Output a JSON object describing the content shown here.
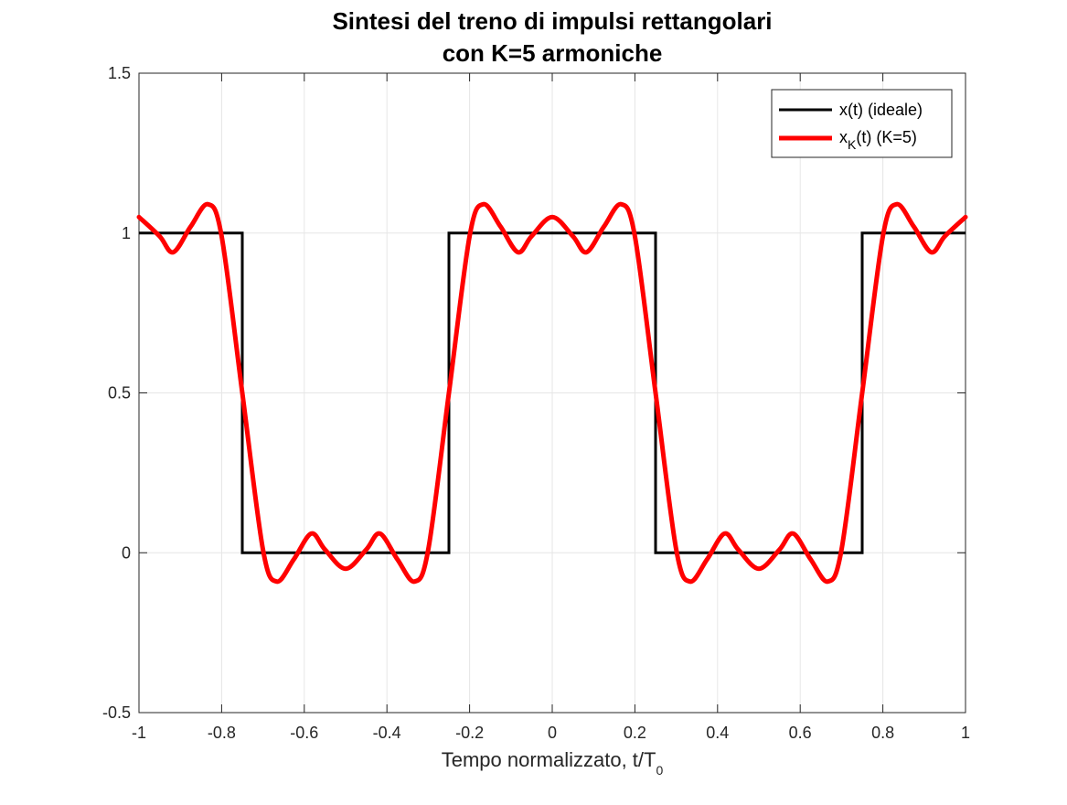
{
  "chart_data": {
    "type": "line",
    "title": [
      "Sintesi del treno di impulsi rettangolari",
      "con K=5 armoniche"
    ],
    "xlabel": {
      "main": "Tempo normalizzato, t/T",
      "subscript": "0"
    },
    "ylabel": "",
    "xlim": [
      -1,
      1
    ],
    "ylim": [
      -0.5,
      1.5
    ],
    "xticks": [
      -1,
      -0.8,
      -0.6,
      -0.4,
      -0.2,
      0,
      0.2,
      0.4,
      0.6,
      0.8,
      1
    ],
    "xtick_labels": [
      "-1",
      "-0.8",
      "-0.6",
      "-0.4",
      "-0.2",
      "0",
      "0.2",
      "0.4",
      "0.6",
      "0.8",
      "1"
    ],
    "yticks": [
      -0.5,
      0,
      0.5,
      1,
      1.5
    ],
    "ytick_labels": [
      "-0.5",
      "0",
      "0.5",
      "1",
      "1.5"
    ],
    "grid": true,
    "legend_position": "top-right",
    "series": [
      {
        "name": "x(t) (ideale)",
        "color": "#000000",
        "x": [
          -1,
          -0.75,
          -0.75,
          -0.25,
          -0.25,
          0.25,
          0.25,
          0.75,
          0.75,
          1
        ],
        "y": [
          1,
          1,
          0,
          0,
          1,
          1,
          0,
          0,
          1,
          1
        ]
      },
      {
        "name": "x_K(t) (K=5)",
        "color": "#ff0000",
        "x": [
          -1,
          -0.95,
          -0.917,
          -0.875,
          -0.833,
          -0.8,
          -0.75,
          -0.7,
          -0.667,
          -0.625,
          -0.583,
          -0.55,
          -0.5,
          -0.45,
          -0.417,
          -0.375,
          -0.333,
          -0.3,
          -0.25,
          -0.2,
          -0.167,
          -0.125,
          -0.083,
          -0.05,
          0,
          0.05,
          0.083,
          0.125,
          0.167,
          0.2,
          0.25,
          0.3,
          0.333,
          0.375,
          0.417,
          0.45,
          0.5,
          0.55,
          0.583,
          0.625,
          0.667,
          0.7,
          0.75,
          0.8,
          0.833,
          0.875,
          0.917,
          0.95,
          1
        ],
        "y": [
          1.05,
          0.99,
          0.94,
          1.02,
          1.09,
          0.99,
          0.5,
          0.01,
          -0.09,
          -0.02,
          0.06,
          0.01,
          -0.05,
          0.01,
          0.06,
          -0.02,
          -0.09,
          0.01,
          0.5,
          0.99,
          1.09,
          1.02,
          0.94,
          0.99,
          1.05,
          0.99,
          0.94,
          1.02,
          1.09,
          0.99,
          0.5,
          0.01,
          -0.09,
          -0.02,
          0.06,
          0.01,
          -0.05,
          0.01,
          0.06,
          -0.02,
          -0.09,
          0.01,
          0.5,
          0.99,
          1.09,
          1.02,
          0.94,
          0.99,
          1.05
        ]
      }
    ],
    "legend": [
      {
        "main": "x(t) (ideale)"
      },
      {
        "main": "x",
        "subscript": "K",
        "rest": "(t) (K=5)"
      }
    ]
  }
}
